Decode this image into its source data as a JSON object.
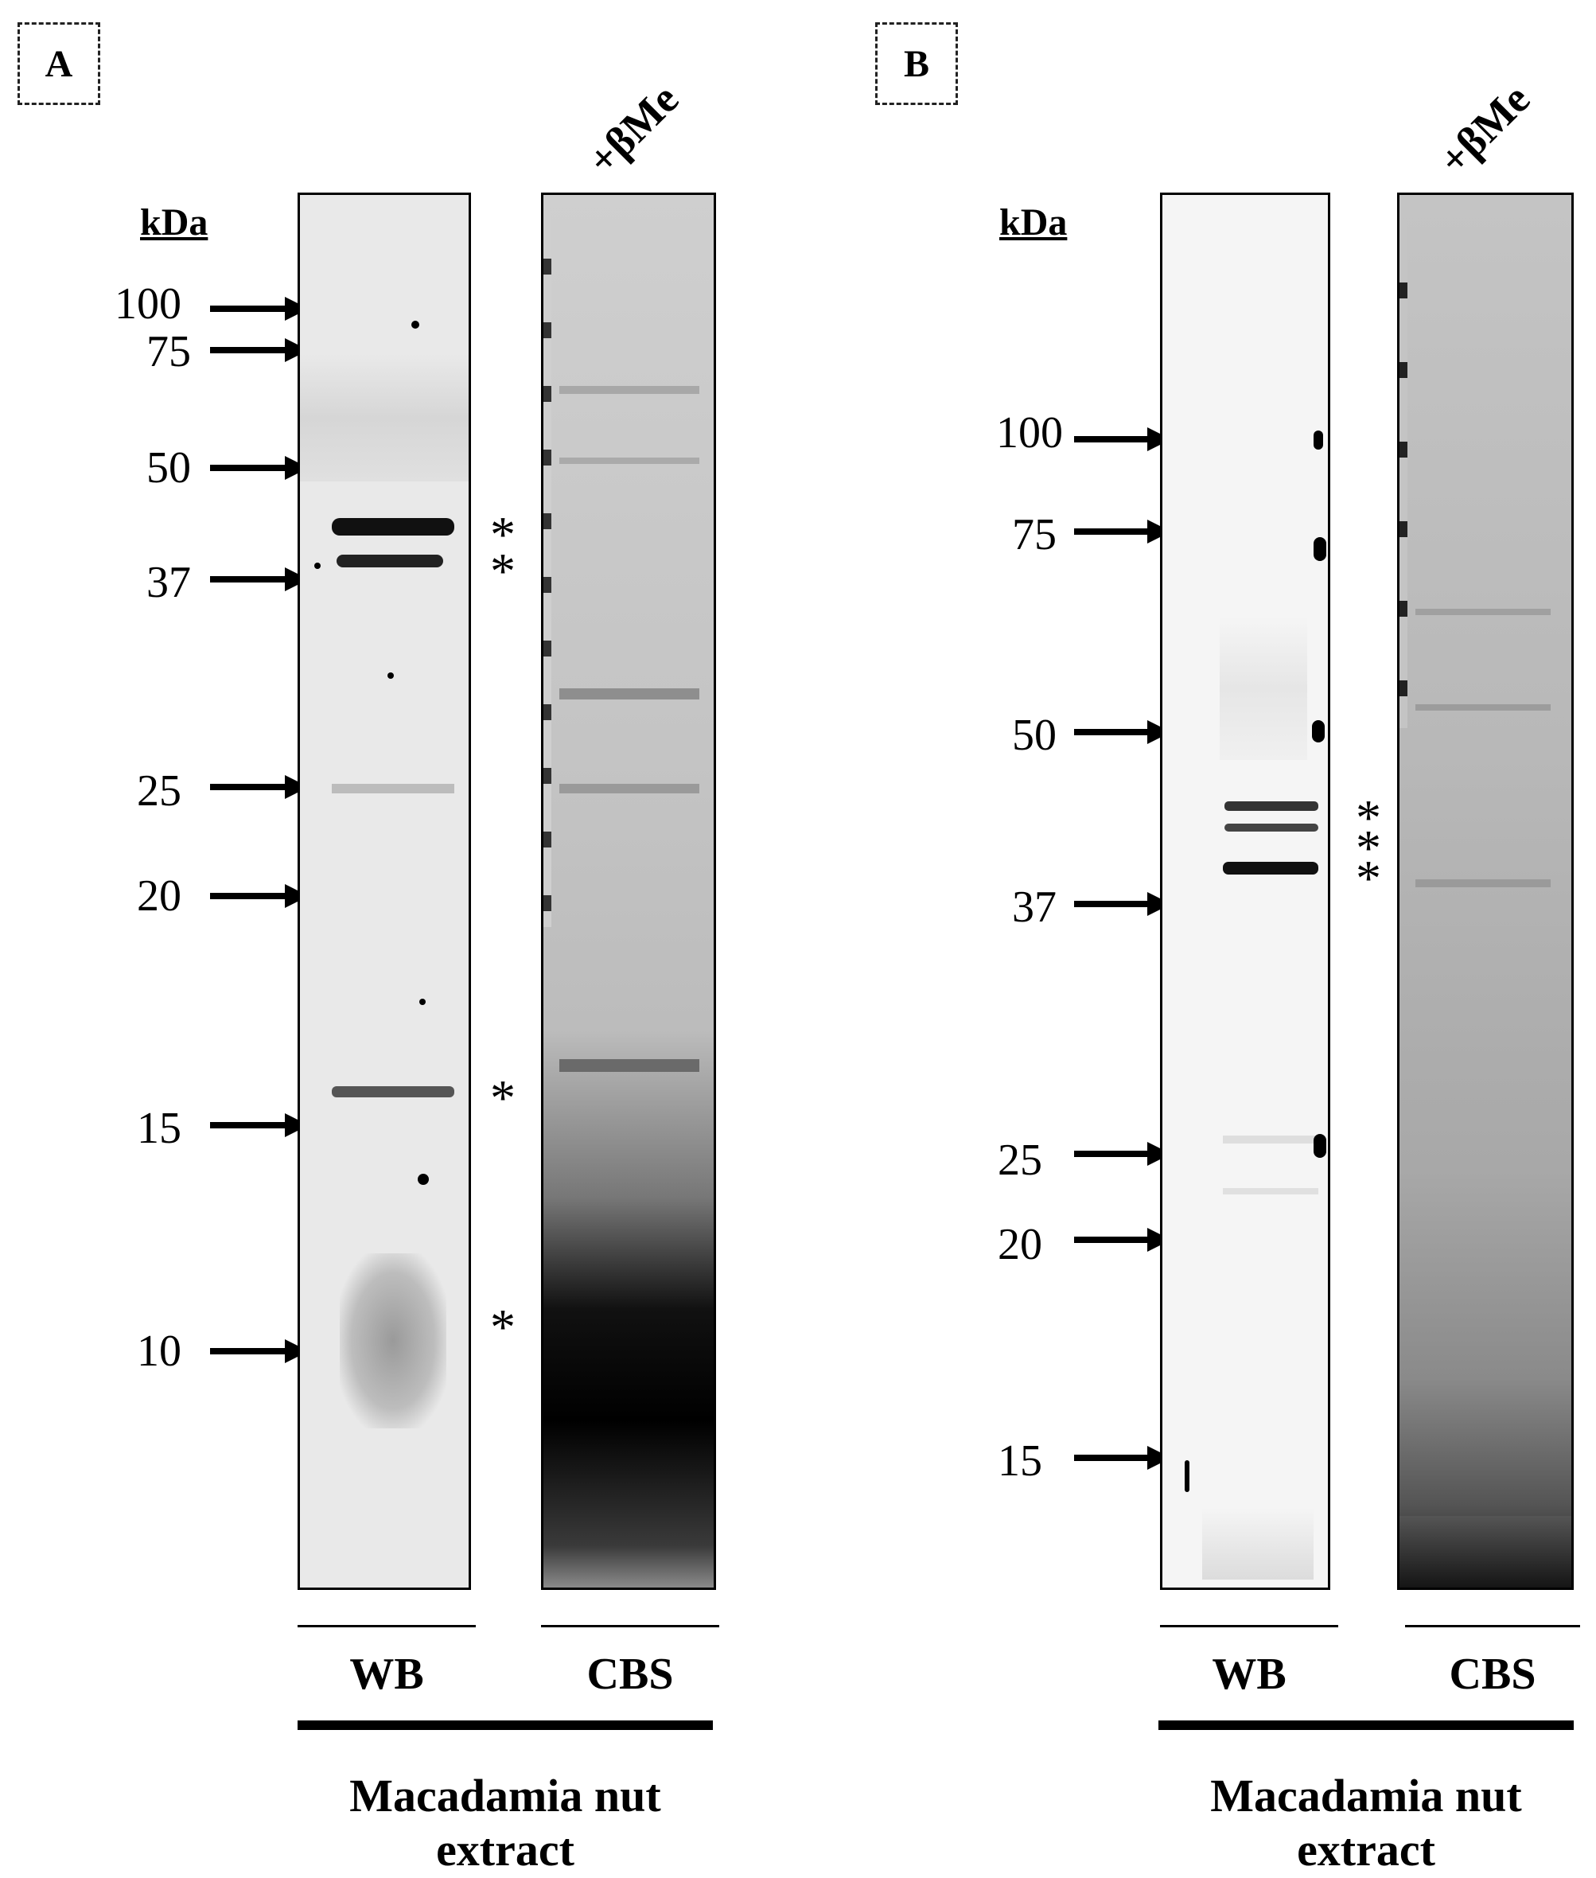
{
  "panelA": {
    "label": "A",
    "unit": "kDa",
    "treatment": "+βMe",
    "markers": [
      "100",
      "75",
      "50",
      "37",
      "25",
      "20",
      "15",
      "10"
    ],
    "lanes": [
      "WB",
      "CBS"
    ],
    "extract_line1": "Macadamia nut",
    "extract_line2": "extract",
    "stars": [
      "*",
      "*",
      "*",
      "*"
    ]
  },
  "panelB": {
    "label": "B",
    "unit": "kDa",
    "treatment": "+βMe",
    "markers": [
      "100",
      "75",
      "50",
      "37",
      "25",
      "20",
      "15"
    ],
    "lanes": [
      "WB",
      "CBS"
    ],
    "extract_line1": "Macadamia nut",
    "extract_line2": "extract",
    "stars": [
      "*",
      "*",
      "*"
    ]
  }
}
